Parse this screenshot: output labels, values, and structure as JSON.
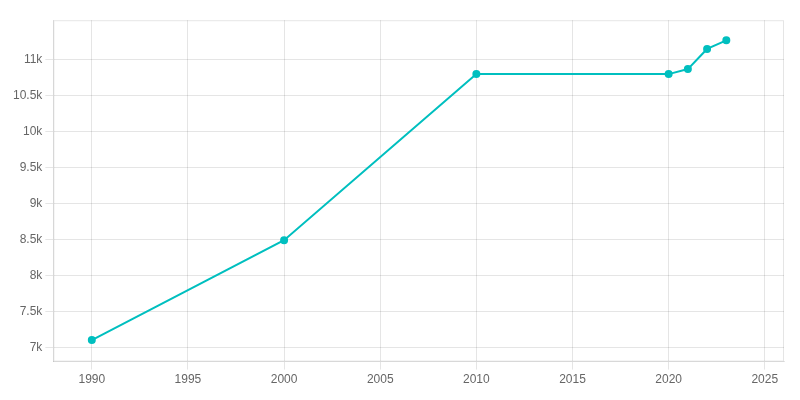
{
  "chart_data": {
    "type": "line",
    "x": [
      1990,
      2000,
      2010,
      2020,
      2021,
      2022,
      2023
    ],
    "values": [
      7100,
      8490,
      10800,
      10800,
      10870,
      11150,
      11270
    ],
    "color": "#00BFBF",
    "marker": "circle",
    "xlim": [
      1988,
      2026
    ],
    "xticks": [
      1990,
      1995,
      2000,
      2005,
      2010,
      2015,
      2020,
      2025
    ],
    "ylim": [
      6800,
      11550
    ],
    "yticks": [
      {
        "value": 7000,
        "label": "7k"
      },
      {
        "value": 7500,
        "label": "7.5k"
      },
      {
        "value": 8000,
        "label": "8k"
      },
      {
        "value": 8500,
        "label": "8.5k"
      },
      {
        "value": 9000,
        "label": "9k"
      },
      {
        "value": 9500,
        "label": "9.5k"
      },
      {
        "value": 10000,
        "label": "10k"
      },
      {
        "value": 10500,
        "label": "10.5k"
      },
      {
        "value": 11000,
        "label": "11k"
      }
    ],
    "grid": true
  }
}
